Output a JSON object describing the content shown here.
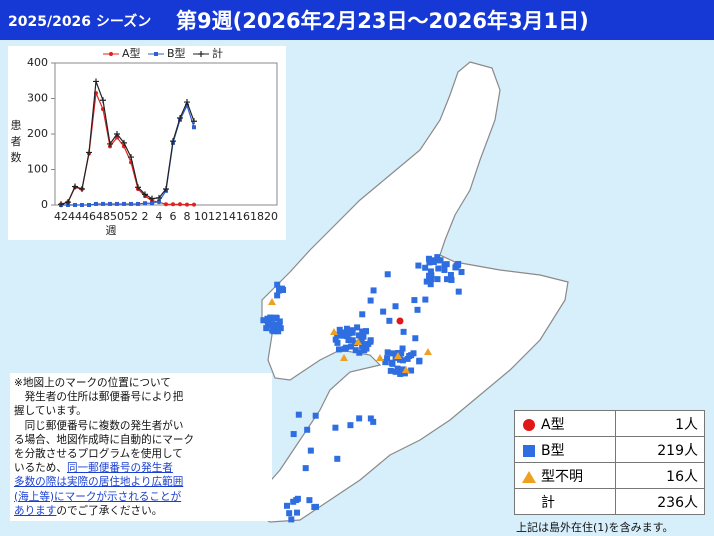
{
  "header": {
    "season": "2025/2026 シーズン",
    "title": "第9週(2026年2月23日～2026年3月1日)"
  },
  "chart_data": {
    "type": "line",
    "x_label": "週",
    "y_label": "患者数",
    "categories": [
      42,
      null,
      44,
      null,
      46,
      null,
      48,
      null,
      50,
      null,
      52,
      null,
      2,
      null,
      4,
      null,
      6,
      null,
      8,
      null,
      10,
      null,
      12,
      null,
      14,
      null,
      16,
      null,
      18,
      null,
      20
    ],
    "series": [
      {
        "name": "A型",
        "color": "#e02020",
        "marker": "circle",
        "values": [
          2,
          8,
          50,
          45,
          145,
          315,
          270,
          165,
          190,
          165,
          120,
          45,
          25,
          12,
          8,
          2,
          2,
          2,
          1,
          1,
          null,
          null,
          null,
          null,
          null,
          null,
          null,
          null,
          null,
          null,
          null
        ]
      },
      {
        "name": "B型",
        "color": "#2f5fd0",
        "marker": "square",
        "values": [
          0,
          0,
          0,
          0,
          0,
          3,
          3,
          3,
          3,
          3,
          3,
          3,
          5,
          5,
          10,
          40,
          175,
          240,
          280,
          219,
          null,
          null,
          null,
          null,
          null,
          null,
          null,
          null,
          null,
          null,
          null
        ]
      },
      {
        "name": "計",
        "color": "#222222",
        "marker": "plus",
        "values": [
          2,
          8,
          52,
          45,
          148,
          348,
          295,
          172,
          200,
          175,
          135,
          50,
          30,
          18,
          20,
          45,
          180,
          245,
          290,
          236,
          null,
          null,
          null,
          null,
          null,
          null,
          null,
          null,
          null,
          null,
          null
        ]
      }
    ],
    "ylim": [
      0,
      400
    ],
    "yticks": [
      0,
      100,
      200,
      300,
      400
    ]
  },
  "legend_table": {
    "rows": [
      {
        "name": "A型",
        "count": "1人",
        "color": "#e01818"
      },
      {
        "name": "B型",
        "count": "219人",
        "color": "#2f6ee0"
      },
      {
        "name": "型不明",
        "count": "16人",
        "color": "#f0a020"
      },
      {
        "name": "計",
        "count": "236人"
      }
    ],
    "footnote": "上記は島外在住(1)を含みます。"
  },
  "notes": {
    "lines": [
      [
        {
          "text": "※地図上のマークの位置について"
        }
      ],
      [
        {
          "text": "　発生者の住所は郵便番号により把"
        }
      ],
      [
        {
          "text": "握しています。"
        }
      ],
      [
        {
          "text": "　同じ郵便番号に複数の発生者がい"
        }
      ],
      [
        {
          "text": "る場合、地図作成時に自動的にマーク"
        }
      ],
      [
        {
          "text": "を分散させるプログラムを使用して"
        }
      ],
      [
        {
          "text": "いるため、"
        },
        {
          "text": "同一郵便番号の発生者",
          "link": true
        }
      ],
      [
        {
          "text": "多数の際は実際の居住地より広範囲",
          "link": true
        }
      ],
      [
        {
          "text": "(海上等)にマークが示されることが",
          "link": true
        }
      ],
      [
        {
          "text": "あります",
          "link": true
        },
        {
          "text": "のでご了承ください。"
        }
      ]
    ]
  }
}
